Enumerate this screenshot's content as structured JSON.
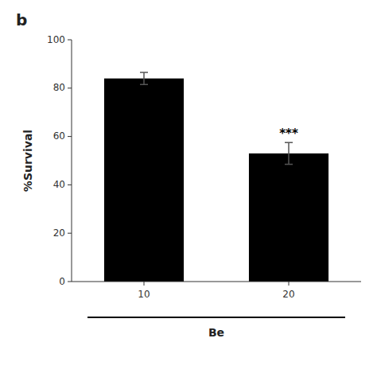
{
  "chart_data": {
    "type": "bar",
    "title": "b",
    "y_label": "%Survival",
    "categories": [
      "10",
      "20"
    ],
    "values": [
      84,
      53
    ],
    "errors": [
      2.5,
      4.5
    ],
    "significance": [
      null,
      "***"
    ],
    "annotations": [
      "Be"
    ],
    "color": "#000000",
    "ylim": [
      0,
      100
    ],
    "yticks": [
      0,
      20,
      40,
      60,
      80,
      100
    ],
    "grid": false
  }
}
